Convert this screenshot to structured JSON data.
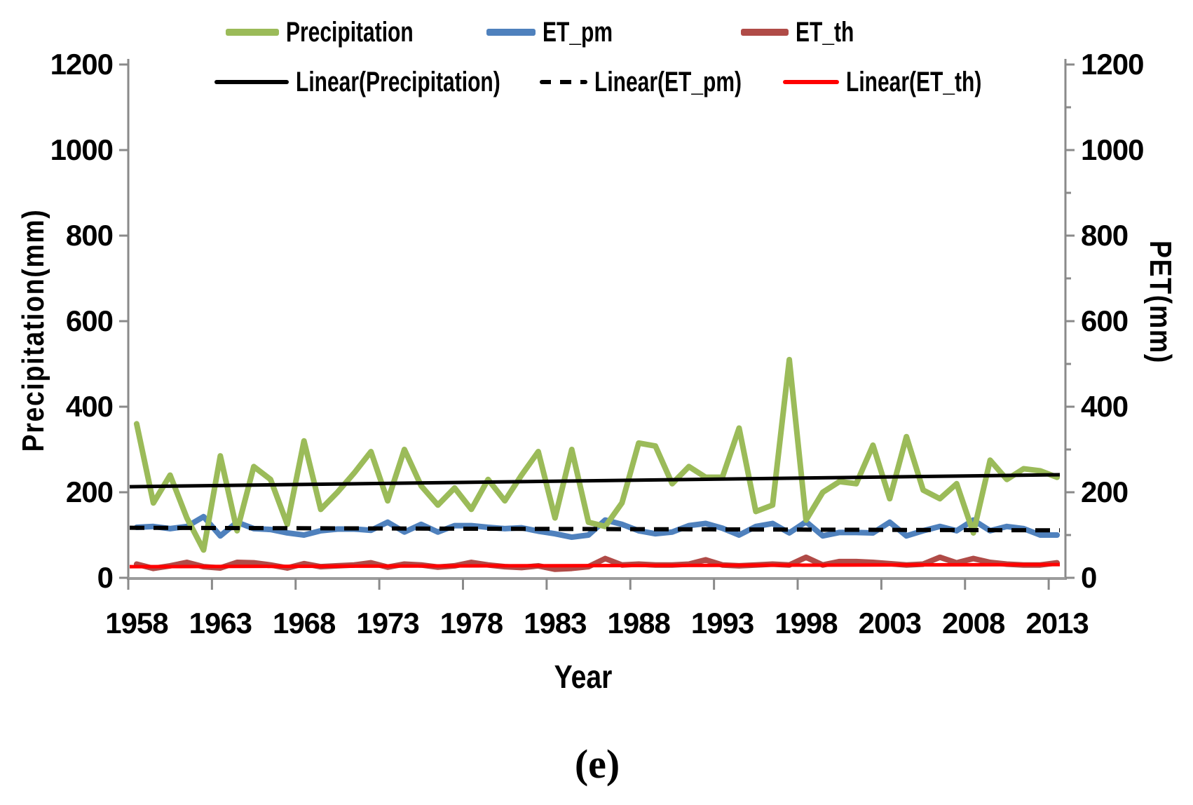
{
  "chart_data": {
    "type": "line",
    "title": "",
    "caption": "(e)",
    "x": [
      1958,
      1959,
      1960,
      1961,
      1962,
      1963,
      1964,
      1965,
      1966,
      1967,
      1968,
      1969,
      1970,
      1971,
      1972,
      1973,
      1974,
      1975,
      1976,
      1977,
      1978,
      1979,
      1980,
      1981,
      1982,
      1983,
      1984,
      1985,
      1986,
      1987,
      1988,
      1989,
      1990,
      1991,
      1992,
      1993,
      1994,
      1995,
      1996,
      1997,
      1998,
      1999,
      2000,
      2001,
      2002,
      2003,
      2004,
      2005,
      2006,
      2007,
      2008,
      2009,
      2010,
      2011,
      2012,
      2013
    ],
    "series": [
      {
        "name": "Precipitation",
        "color": "#9BBB59",
        "values": [
          360,
          175,
          240,
          140,
          65,
          285,
          110,
          260,
          230,
          125,
          320,
          160,
          200,
          245,
          295,
          180,
          300,
          215,
          170,
          210,
          160,
          230,
          180,
          240,
          295,
          140,
          300,
          130,
          120,
          175,
          315,
          308,
          220,
          260,
          235,
          235,
          350,
          155,
          170,
          510,
          135,
          200,
          225,
          220,
          310,
          185,
          330,
          205,
          185,
          220,
          105,
          275,
          230,
          255,
          250,
          235
        ]
      },
      {
        "name": "ET_pm",
        "color": "#4F81BD",
        "values": [
          118,
          120,
          115,
          120,
          143,
          98,
          130,
          115,
          113,
          105,
          100,
          110,
          114,
          114,
          111,
          130,
          107,
          125,
          107,
          122,
          122,
          118,
          115,
          117,
          109,
          103,
          95,
          100,
          135,
          125,
          110,
          103,
          107,
          122,
          127,
          116,
          100,
          120,
          127,
          105,
          131,
          98,
          106,
          106,
          105,
          130,
          98,
          110,
          120,
          110,
          135,
          110,
          120,
          115,
          100,
          100
        ]
      },
      {
        "name": "ET_th",
        "color": "#B04B47",
        "values": [
          32,
          22,
          28,
          36,
          26,
          23,
          36,
          35,
          30,
          23,
          33,
          26,
          28,
          30,
          35,
          25,
          32,
          30,
          25,
          28,
          36,
          30,
          26,
          24,
          28,
          20,
          22,
          26,
          45,
          30,
          32,
          30,
          30,
          32,
          42,
          30,
          28,
          30,
          32,
          30,
          48,
          30,
          38,
          38,
          36,
          33,
          30,
          32,
          48,
          35,
          45,
          36,
          32,
          30,
          30,
          35
        ]
      }
    ],
    "trendlines": [
      {
        "name": "Linear(Precipitation)",
        "color": "#000000",
        "dash": "solid",
        "start": 213,
        "end": 241
      },
      {
        "name": "Linear(ET_pm)",
        "color": "#000000",
        "dash": "dashed",
        "start": 117,
        "end": 111
      },
      {
        "name": "Linear(ET_th)",
        "color": "#FF0000",
        "dash": "solid",
        "start": 26,
        "end": 31
      }
    ],
    "left_axis": {
      "label": "Precipitation(mm)",
      "min": 0,
      "max": 1200,
      "tick_step": 200,
      "ticks": [
        0,
        200,
        400,
        600,
        800,
        1000,
        1200
      ]
    },
    "right_axis": {
      "label": "PET(mm)",
      "min": 0,
      "max": 1200,
      "tick_step": 200,
      "minor_tick_step": 100,
      "ticks": [
        0,
        200,
        400,
        600,
        800,
        1000,
        1200
      ]
    },
    "x_axis": {
      "label": "Year",
      "tick_label_interval": 5,
      "tick_labels": [
        1958,
        1963,
        1968,
        1973,
        1978,
        1983,
        1988,
        1993,
        1998,
        2003,
        2008,
        2013
      ]
    },
    "legend_position": "top",
    "grid": "off",
    "axis_color": "#8A8A8A"
  }
}
